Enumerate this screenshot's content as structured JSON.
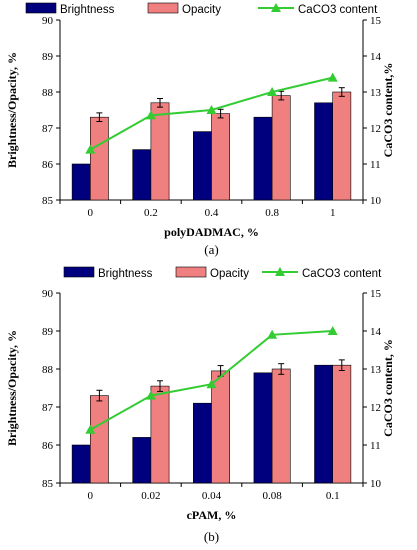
{
  "chart_data": [
    {
      "type": "bar",
      "caption": "(a)",
      "xlabel": "polyDADMAC, %",
      "ylabel": "Brightness/Opacity, %",
      "y2label": "CaCO3 content,%",
      "categories": [
        "0",
        "0.2",
        "0.4",
        "0.8",
        "1"
      ],
      "ylim": [
        85,
        90
      ],
      "y2lim": [
        10,
        15
      ],
      "yticks": [
        "85",
        "86",
        "87",
        "88",
        "89",
        "90"
      ],
      "y2ticks": [
        "10",
        "11",
        "12",
        "13",
        "14",
        "15"
      ],
      "series": [
        {
          "name": "Brightness",
          "type": "bar",
          "color": "#00007f",
          "values": [
            86.0,
            86.4,
            86.9,
            87.3,
            87.7
          ]
        },
        {
          "name": "Opacity",
          "type": "bar",
          "color": "#f08080",
          "values": [
            87.3,
            87.7,
            87.4,
            87.9,
            88.0
          ],
          "errors": [
            0.12,
            0.12,
            0.12,
            0.12,
            0.12
          ]
        },
        {
          "name": "CaCO3 content",
          "type": "line",
          "axis": "right",
          "color": "#33cc33",
          "values": [
            11.4,
            12.35,
            12.5,
            13.0,
            13.4
          ]
        }
      ]
    },
    {
      "type": "bar",
      "caption": "(b)",
      "xlabel": "cPAM, %",
      "ylabel": "Brightness/Opacity, %",
      "y2label": "CaCO3 content, %",
      "categories": [
        "0",
        "0.02",
        "0.04",
        "0.08",
        "0.1"
      ],
      "ylim": [
        85,
        90
      ],
      "y2lim": [
        10,
        15
      ],
      "yticks": [
        "85",
        "86",
        "87",
        "88",
        "89",
        "90"
      ],
      "y2ticks": [
        "10",
        "11",
        "12",
        "13",
        "14",
        "15"
      ],
      "series": [
        {
          "name": "Brightness",
          "type": "bar",
          "color": "#00007f",
          "values": [
            86.0,
            86.2,
            87.1,
            87.9,
            88.1
          ]
        },
        {
          "name": "Opacity",
          "type": "bar",
          "color": "#f08080",
          "values": [
            87.3,
            87.55,
            87.95,
            88.0,
            88.1
          ],
          "errors": [
            0.14,
            0.14,
            0.14,
            0.14,
            0.14
          ]
        },
        {
          "name": "CaCO3 content",
          "type": "line",
          "axis": "right",
          "color": "#33cc33",
          "values": [
            11.4,
            12.3,
            12.6,
            13.9,
            14.0
          ]
        }
      ]
    }
  ]
}
